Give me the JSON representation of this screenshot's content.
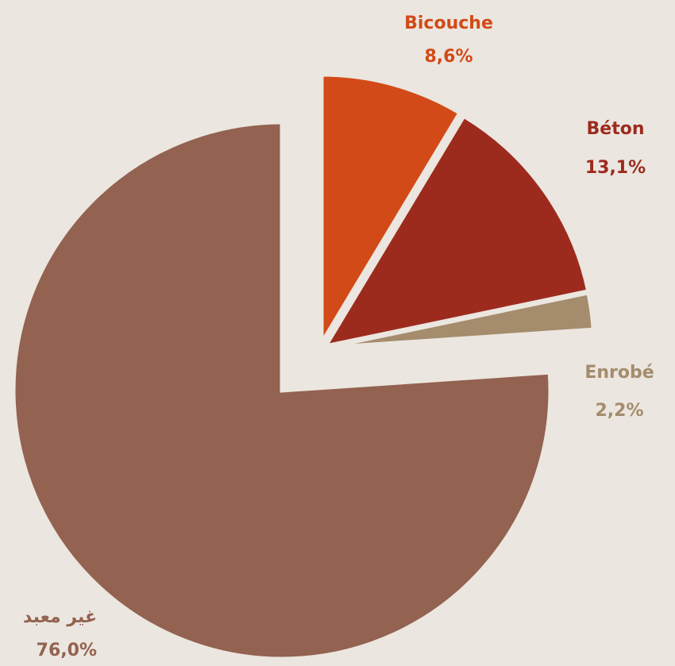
{
  "chart_data": {
    "type": "pie",
    "categories": [
      "Bicouche",
      "Béton",
      "Enrobé",
      "غير معبد"
    ],
    "values": [
      8.6,
      13.1,
      2.2,
      76.0
    ],
    "value_labels": [
      "8,6%",
      "13,1%",
      "2,2%",
      "76,0%"
    ],
    "colors": [
      "#d24a18",
      "#9c2b1e",
      "#a48c6c",
      "#936250"
    ]
  }
}
